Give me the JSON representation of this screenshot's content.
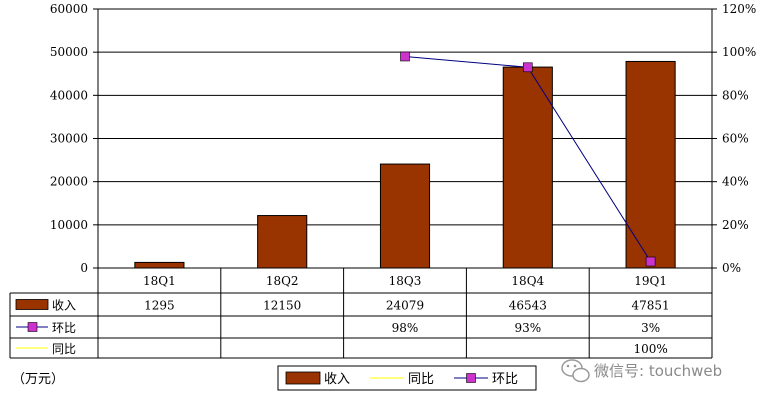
{
  "chart_data": {
    "type": "bar",
    "categories": [
      "18Q1",
      "18Q2",
      "18Q3",
      "18Q4",
      "19Q1"
    ],
    "series": [
      {
        "name": "收入",
        "kind": "bar",
        "axis": "left",
        "color": "#993300",
        "values": [
          1295,
          12150,
          24079,
          46543,
          47851
        ],
        "labels": [
          "1295",
          "12150",
          "24079",
          "46543",
          "47851"
        ]
      },
      {
        "name": "同比",
        "kind": "line",
        "axis": "right",
        "color": "#ffff00",
        "values": [
          null,
          null,
          null,
          null,
          1.0
        ],
        "labels": [
          "",
          "",
          "",
          "",
          "100%"
        ]
      },
      {
        "name": "环比",
        "kind": "line",
        "axis": "right",
        "color": "#000080",
        "marker_color": "#cc33cc",
        "values": [
          null,
          null,
          0.98,
          0.93,
          0.03
        ],
        "labels": [
          "",
          "",
          "98%",
          "93%",
          "3%"
        ]
      }
    ],
    "left_axis": {
      "ylim": [
        0,
        60000
      ],
      "ticks": [
        "0",
        "10000",
        "20000",
        "30000",
        "40000",
        "50000",
        "60000"
      ]
    },
    "right_axis": {
      "ylim": [
        0,
        1.2
      ],
      "ticks": [
        "0%",
        "20%",
        "40%",
        "60%",
        "80%",
        "100%",
        "120%"
      ]
    },
    "gridlines": true,
    "unit_label": "（万元）",
    "legend": {
      "position": "bottom",
      "items": [
        "收入",
        "同比",
        "环比"
      ]
    },
    "data_table": {
      "row_order": [
        "收入",
        "环比",
        "同比"
      ]
    }
  },
  "watermark": {
    "text": "微信号: touchweb",
    "icon": "wechat-icon"
  }
}
